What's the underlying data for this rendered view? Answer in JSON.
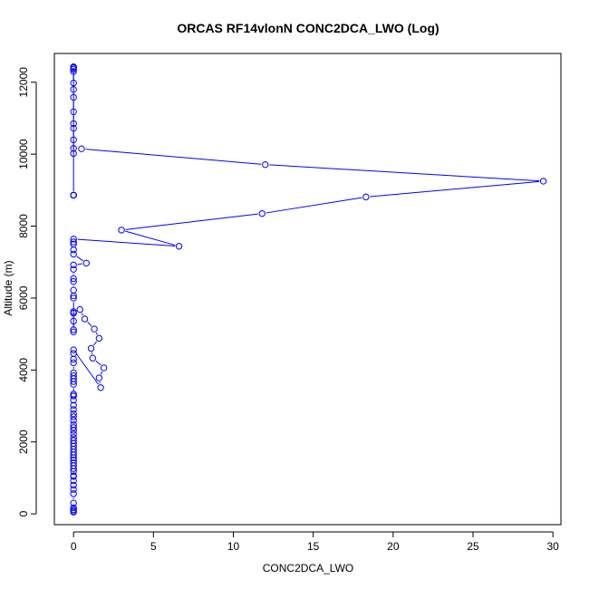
{
  "chart_data": {
    "type": "line",
    "title": "ORCAS RF14vlonN CONC2DCA_LWO (Log)",
    "xlabel": "CONC2DCA_LWO",
    "ylabel": "Altitude (m)",
    "xlim": [
      -1.2,
      30.5
    ],
    "ylim": [
      -300,
      12800
    ],
    "xticks": [
      0,
      5,
      10,
      15,
      20,
      25,
      30
    ],
    "yticks": [
      0,
      2000,
      4000,
      6000,
      8000,
      10000,
      12000
    ],
    "grid": false,
    "colors": {
      "series": "#0000ff",
      "axis": "#000000"
    },
    "markers": "open-circle",
    "series": [
      {
        "x": [
          0,
          0,
          0,
          0,
          0,
          0,
          0,
          0,
          0,
          0,
          0,
          0,
          0,
          0,
          0,
          0,
          0,
          0,
          0,
          0,
          0,
          0,
          0,
          0,
          0,
          0,
          0,
          0,
          0,
          0,
          0,
          0,
          0,
          0,
          0,
          0,
          0,
          0,
          0,
          0,
          0,
          0,
          0,
          0,
          0,
          0,
          1.7,
          1.6,
          1.9,
          1.2,
          1.1,
          1.6,
          1.3,
          0.7,
          0.4,
          0,
          0,
          0,
          0,
          0,
          0,
          0,
          0,
          0,
          0,
          0,
          0,
          0.8,
          0,
          0,
          0,
          0,
          0,
          6.6,
          3.0,
          11.8,
          18.3,
          29.4,
          12.0,
          0.5,
          0,
          0,
          0,
          0,
          0,
          0,
          0,
          0,
          0,
          0,
          0,
          0,
          0,
          0,
          0,
          0,
          0,
          0
        ],
        "y": [
          50,
          80,
          120,
          170,
          300,
          560,
          680,
          800,
          920,
          1040,
          1060,
          1180,
          1260,
          1340,
          1420,
          1500,
          1560,
          1640,
          1720,
          1800,
          1880,
          1960,
          2040,
          2120,
          2220,
          2320,
          2400,
          2480,
          2600,
          2700,
          2780,
          2900,
          3020,
          3160,
          3280,
          3330,
          3280,
          3600,
          3680,
          3760,
          3840,
          3920,
          4200,
          4300,
          4460,
          4560,
          3510,
          3780,
          4060,
          4330,
          4600,
          4880,
          5140,
          5420,
          5680,
          5620,
          5580,
          5360,
          5120,
          5060,
          6000,
          6060,
          6220,
          6460,
          6540,
          6800,
          6920,
          6970,
          7220,
          7340,
          7500,
          7560,
          7640,
          7440,
          7890,
          8350,
          8810,
          9250,
          9710,
          10150,
          10160,
          10020,
          10400,
          10720,
          10850,
          11180,
          11580,
          11800,
          11980,
          12300,
          12360,
          12400,
          12420,
          12430,
          8860,
          8860,
          8860,
          8860
        ]
      }
    ]
  }
}
